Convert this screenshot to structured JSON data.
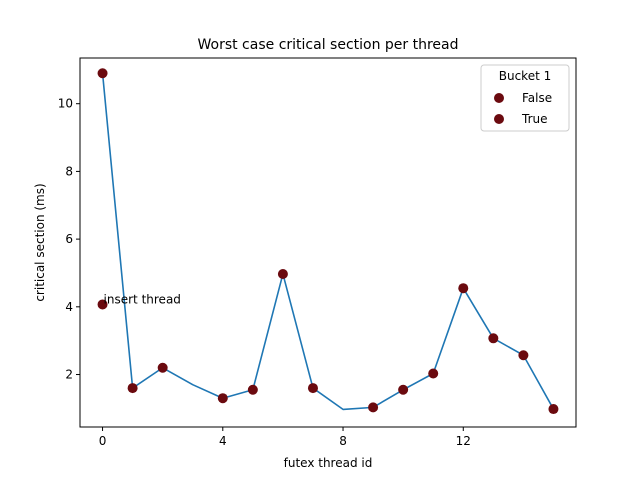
{
  "chart_data": {
    "type": "scatter",
    "title": "Worst case critical section per thread",
    "xlabel": "futex thread id",
    "ylabel": "critical section (ms)",
    "xlim": [
      -0.75,
      15.75
    ],
    "ylim": [
      0.45,
      11.35
    ],
    "xticks": [
      0,
      4,
      8,
      12
    ],
    "yticks": [
      2,
      4,
      6,
      8,
      10
    ],
    "grid": false,
    "line_series": {
      "color": "#1f77b4",
      "x": [
        0,
        1,
        2,
        3,
        4,
        5,
        6,
        7,
        8,
        9,
        10,
        11,
        12,
        13,
        14,
        15
      ],
      "y": [
        10.9,
        1.6,
        2.2,
        1.7,
        1.3,
        1.55,
        4.97,
        1.6,
        0.97,
        1.03,
        1.55,
        2.03,
        4.55,
        3.07,
        2.57,
        0.98
      ]
    },
    "scatter_points": {
      "color": "#6b0a0f",
      "x": [
        0,
        0,
        1,
        2,
        4,
        5,
        6,
        7,
        9,
        10,
        11,
        12,
        13,
        14,
        15
      ],
      "y": [
        10.9,
        4.07,
        1.6,
        2.2,
        1.3,
        1.55,
        4.97,
        1.6,
        1.03,
        1.55,
        2.03,
        4.55,
        3.07,
        2.57,
        0.98
      ]
    },
    "annotation": {
      "text": "insert thread",
      "x": 0,
      "y": 4.07
    },
    "legend": {
      "title": "Bucket 1",
      "placement": "top-right",
      "entries": [
        {
          "label": " False",
          "color": "#6b0a0f"
        },
        {
          "label": "True",
          "color": "#6b0a0f"
        }
      ]
    }
  }
}
